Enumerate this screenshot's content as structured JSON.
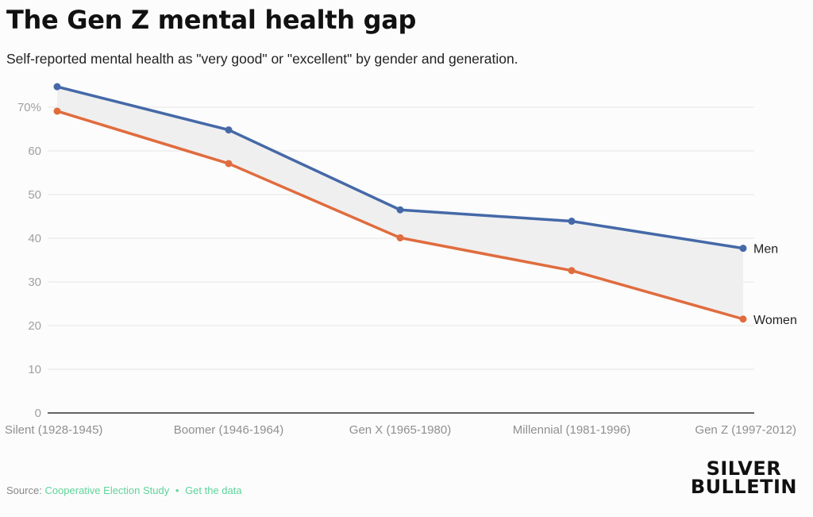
{
  "header": {
    "title": "The Gen Z mental health gap",
    "subtitle": "Self-reported mental health as \"very good\" or \"excellent\" by gender and generation."
  },
  "footer": {
    "source_label": "Source:",
    "source_link": "Cooperative Election Study",
    "separator": "•",
    "data_link": "Get the data"
  },
  "logo": {
    "line1": "SILVER",
    "line2": "BULLETIN"
  },
  "colors": {
    "men": "#4569a8",
    "women": "#e06c3e",
    "gap_fill": "#efefef",
    "grid": "#e6e6e6",
    "baseline": "#333333"
  },
  "chart_data": {
    "type": "line",
    "title": "The Gen Z mental health gap",
    "subtitle": "Self-reported mental health as \"very good\" or \"excellent\" by gender and generation.",
    "categories": [
      "Silent (1928-1945)",
      "Boomer (1946-1964)",
      "Gen X (1965-1980)",
      "Millennial (1981-1996)",
      "Gen Z (1997-2012)"
    ],
    "series": [
      {
        "name": "Men",
        "values": [
          74.7,
          64.8,
          46.5,
          43.9,
          37.7
        ]
      },
      {
        "name": "Women",
        "values": [
          69.1,
          57.1,
          40.1,
          32.6,
          21.5
        ]
      }
    ],
    "yticks": [
      0,
      10,
      20,
      30,
      40,
      50,
      60,
      70
    ],
    "ytick_labels": [
      "0",
      "10",
      "20",
      "30",
      "40",
      "50",
      "60",
      "70%"
    ],
    "ylim": [
      0,
      75
    ],
    "grid": true,
    "shaded_gap": true,
    "legend": "inline-right"
  }
}
